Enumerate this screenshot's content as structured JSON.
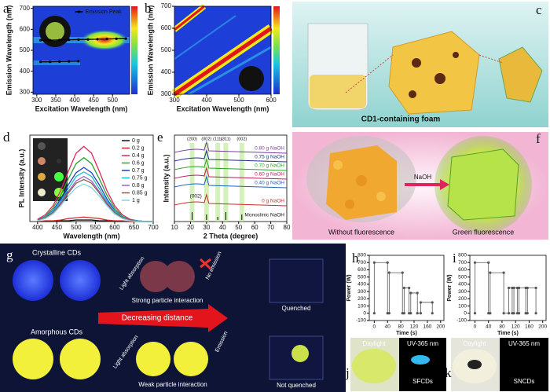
{
  "panel_letters": [
    "a",
    "b",
    "c",
    "d",
    "e",
    "f",
    "g",
    "h",
    "i",
    "j",
    "k"
  ],
  "chart_data": [
    {
      "type": "heatmap",
      "xlabel": "Excitation Wavelength (nm)",
      "ylabel": "Emission Wavelength (nm)",
      "xlim": [
        290,
        545
      ],
      "xticks": [
        300,
        350,
        400,
        450,
        500
      ],
      "ylim": [
        290,
        710
      ],
      "yticks": [
        300,
        400,
        500,
        600,
        700
      ],
      "legend": "upper center",
      "markers": true,
      "series": [
        {
          "name": "Emission Peak",
          "color": "#000000",
          "x": [
            310,
            335,
            360,
            385,
            410,
            435,
            460,
            485,
            510,
            535
          ],
          "values": [
            548,
            548,
            549,
            550,
            551,
            552,
            553,
            554,
            555,
            556
          ]
        },
        {
          "color": "#000000",
          "x": [
            310,
            335,
            360,
            385,
            410
          ],
          "values": [
            445,
            445,
            446,
            447,
            448
          ]
        }
      ]
    },
    {
      "type": "heatmap",
      "xlabel": "Excitation Wavelength (nm)",
      "ylabel": "Emission Wavelength (nm)",
      "xlim": [
        300,
        600
      ],
      "xticks": [
        300,
        400,
        500,
        600
      ],
      "ylim": [
        300,
        700
      ],
      "yticks": [
        300,
        400,
        500,
        600,
        700
      ]
    },
    {
      "type": "line",
      "xlabel": "Wavelength (nm)",
      "ylabel": "PL Intensity (a.u.)",
      "xlim": [
        380,
        700
      ],
      "xticks": [
        400,
        450,
        500,
        550,
        600,
        650,
        700
      ],
      "ylim": [
        0,
        1.15
      ],
      "legend": "upper right",
      "x": [
        400,
        420,
        440,
        460,
        480,
        500,
        520,
        540,
        560,
        580,
        600,
        620,
        640,
        660,
        680,
        700
      ],
      "series": [
        {
          "name": "0 g",
          "color": "#111111",
          "values": [
            0,
            0,
            0,
            0.01,
            0.01,
            0.02,
            0.02,
            0.02,
            0.01,
            0.01,
            0,
            0,
            0,
            0,
            0,
            0
          ]
        },
        {
          "name": "0.2 g",
          "color": "#d62728",
          "values": [
            0,
            0.01,
            0.01,
            0.02,
            0.04,
            0.05,
            0.06,
            0.05,
            0.04,
            0.02,
            0.01,
            0.01,
            0,
            0,
            0,
            0
          ]
        },
        {
          "name": "0.4 g",
          "color": "#e0245e",
          "values": [
            0.03,
            0.09,
            0.21,
            0.41,
            0.67,
            0.91,
            1,
            0.91,
            0.67,
            0.41,
            0.21,
            0.09,
            0.03,
            0.01,
            0,
            0
          ]
        },
        {
          "name": "0.6 g",
          "color": "#2ca02c",
          "values": [
            0.02,
            0.07,
            0.18,
            0.35,
            0.57,
            0.77,
            0.85,
            0.77,
            0.57,
            0.35,
            0.18,
            0.07,
            0.02,
            0.01,
            0,
            0
          ]
        },
        {
          "name": "0.7 g",
          "color": "#1f3fbf",
          "values": [
            0.02,
            0.06,
            0.15,
            0.3,
            0.49,
            0.65,
            0.72,
            0.65,
            0.49,
            0.3,
            0.15,
            0.06,
            0.02,
            0.01,
            0,
            0
          ]
        },
        {
          "name": "0.75 g",
          "color": "#17becf",
          "values": [
            0.02,
            0.06,
            0.14,
            0.27,
            0.44,
            0.6,
            0.66,
            0.6,
            0.44,
            0.27,
            0.14,
            0.06,
            0.02,
            0.01,
            0,
            0
          ]
        },
        {
          "name": "0.8 g",
          "color": "#9467bd",
          "values": [
            0.02,
            0.05,
            0.12,
            0.25,
            0.4,
            0.54,
            0.6,
            0.54,
            0.4,
            0.25,
            0.12,
            0.05,
            0.02,
            0,
            0,
            0
          ]
        },
        {
          "name": "0.85 g",
          "color": "#8c564b",
          "values": [
            0.02,
            0.05,
            0.12,
            0.23,
            0.38,
            0.51,
            0.56,
            0.51,
            0.38,
            0.23,
            0.12,
            0.05,
            0.02,
            0,
            0,
            0
          ]
        },
        {
          "name": "1 g",
          "color": "#7fd6e8",
          "values": [
            0.01,
            0.04,
            0.1,
            0.21,
            0.34,
            0.45,
            0.5,
            0.45,
            0.34,
            0.21,
            0.1,
            0.04,
            0.01,
            0,
            0,
            0
          ]
        }
      ]
    },
    {
      "type": "xrd",
      "xlabel": "2 Theta (degree)",
      "ylabel": "Intensity (a.u.)",
      "xlim": [
        10,
        80
      ],
      "xticks": [
        10,
        20,
        30,
        40,
        50,
        60,
        70,
        80
      ],
      "peak_positions": [
        21,
        30,
        37,
        42,
        52
      ],
      "peak_labels": [
        "(200)",
        "(002)",
        "(111)",
        "(311)",
        "(002)"
      ],
      "traces": [
        {
          "name": "0.80 g NaOH",
          "color": "#7b3f9e"
        },
        {
          "name": "0.75 g NaOH",
          "color": "#1f2f8f"
        },
        {
          "name": "0.70 g NaOH",
          "color": "#2ca02c"
        },
        {
          "name": "0.60 g NaOH",
          "color": "#c2185b"
        },
        {
          "name": "0.40 g NaOH",
          "color": "#1f5fbf"
        },
        {
          "name": "0 g NaOH",
          "color": "#d62728"
        }
      ],
      "main_peak": "(002)",
      "reference": "Monoclinic NaOH"
    },
    {
      "type": "line",
      "xlabel": "Time (s)",
      "ylabel": "Power (W)",
      "xlim": [
        -15,
        210
      ],
      "xticks": [
        0,
        40,
        80,
        120,
        160,
        200
      ],
      "ylim": [
        -100,
        800
      ],
      "yticks": [
        -100,
        0,
        100,
        200,
        300,
        400,
        500,
        600,
        700,
        800
      ],
      "markers": true,
      "x": [
        0,
        0,
        40,
        40,
        45,
        45,
        85,
        85,
        90,
        90,
        105,
        105,
        110,
        110,
        130,
        130,
        140,
        140,
        175,
        175
      ],
      "series": [
        {
          "color": "#555555",
          "values": [
            0,
            700,
            700,
            0,
            0,
            560,
            560,
            0,
            0,
            350,
            350,
            0,
            0,
            280,
            280,
            0,
            0,
            150,
            150,
            0
          ]
        }
      ]
    },
    {
      "type": "line",
      "xlabel": "Time (s)",
      "ylabel": "Power (W)",
      "xlim": [
        -15,
        210
      ],
      "xticks": [
        0,
        40,
        80,
        120,
        160,
        200
      ],
      "ylim": [
        -100,
        800
      ],
      "yticks": [
        -100,
        0,
        100,
        200,
        300,
        400,
        500,
        600,
        700,
        800
      ],
      "markers": true,
      "x": [
        0,
        0,
        40,
        40,
        45,
        45,
        85,
        85,
        100,
        100,
        110,
        110,
        115,
        115,
        125,
        125,
        130,
        130,
        150,
        150,
        155,
        155,
        180,
        180
      ],
      "series": [
        {
          "color": "#555555",
          "values": [
            0,
            700,
            700,
            0,
            0,
            560,
            560,
            0,
            0,
            350,
            350,
            0,
            0,
            350,
            350,
            0,
            0,
            350,
            350,
            0,
            0,
            350,
            350,
            0
          ]
        }
      ]
    }
  ],
  "panel_c": {
    "caption": "CD1-containing foam"
  },
  "panel_f": {
    "arrow_label": "NaOH",
    "left_caption": "Without  fluorescence",
    "right_caption": "Green  fluorescence"
  },
  "panel_g": {
    "crystalline": "Crystalline CDs",
    "amorphous": "Amorphous CDs",
    "light_top": "Light absorption",
    "no_emission": "No emission",
    "strong": "Strong particle interaction",
    "quenched": "Quenched",
    "arrow": "Decreasing distance",
    "light_bottom": "Light absorption",
    "emission": "Emission",
    "weak": "Weak particle interaction",
    "not_quenched": "Not quenched"
  },
  "panel_j": {
    "daylight": "Daylight",
    "uv": "UV-365 nm",
    "sample": "SFCDs"
  },
  "panel_k": {
    "daylight": "Daylight",
    "uv": "UV-365 nm",
    "sample": "SNCDs"
  }
}
